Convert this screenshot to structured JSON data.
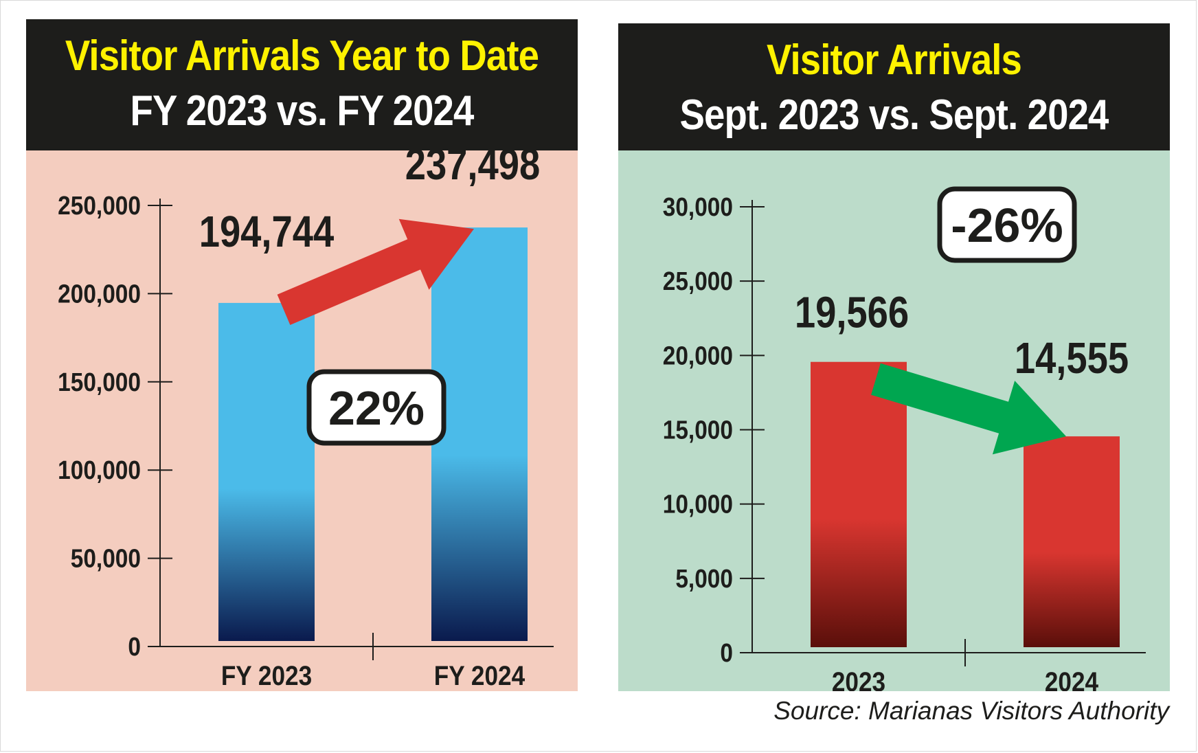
{
  "source": "Source: Marianas Visitors Authority",
  "chart_data": [
    {
      "type": "bar",
      "title_line1": "Visitor Arrivals Year to Date",
      "title_line2": "FY 2023 vs. FY 2024",
      "categories": [
        "FY 2023",
        "FY 2024"
      ],
      "values": [
        194744,
        237498
      ],
      "value_labels": [
        "194,744",
        "237,498"
      ],
      "ylim": [
        0,
        250000
      ],
      "yticks": [
        0,
        50000,
        100000,
        150000,
        200000,
        250000
      ],
      "ytick_labels": [
        "0",
        "50,000",
        "100,000",
        "150,000",
        "200,000",
        "250,000"
      ],
      "change_label": "22%",
      "change_direction": "up",
      "bar_color": "#4bbbe9",
      "bar_color_bottom": "#0a1a4d",
      "arrow_color": "#d93630",
      "background": "#f4cdbf"
    },
    {
      "type": "bar",
      "title_line1": "Visitor Arrivals",
      "title_line2": "Sept. 2023 vs. Sept. 2024",
      "categories": [
        "2023",
        "2024"
      ],
      "values": [
        19566,
        14555
      ],
      "value_labels": [
        "19,566",
        "14,555"
      ],
      "ylim": [
        0,
        30000
      ],
      "yticks": [
        0,
        5000,
        10000,
        15000,
        20000,
        25000,
        30000
      ],
      "ytick_labels": [
        "0",
        "5,000",
        "10,000",
        "15,000",
        "20,000",
        "25,000",
        "30,000"
      ],
      "change_label": "-26%",
      "change_direction": "down",
      "bar_color": "#d93630",
      "bar_color_bottom": "#5a0f0a",
      "arrow_color": "#00a650",
      "background": "#bcdcca"
    }
  ]
}
